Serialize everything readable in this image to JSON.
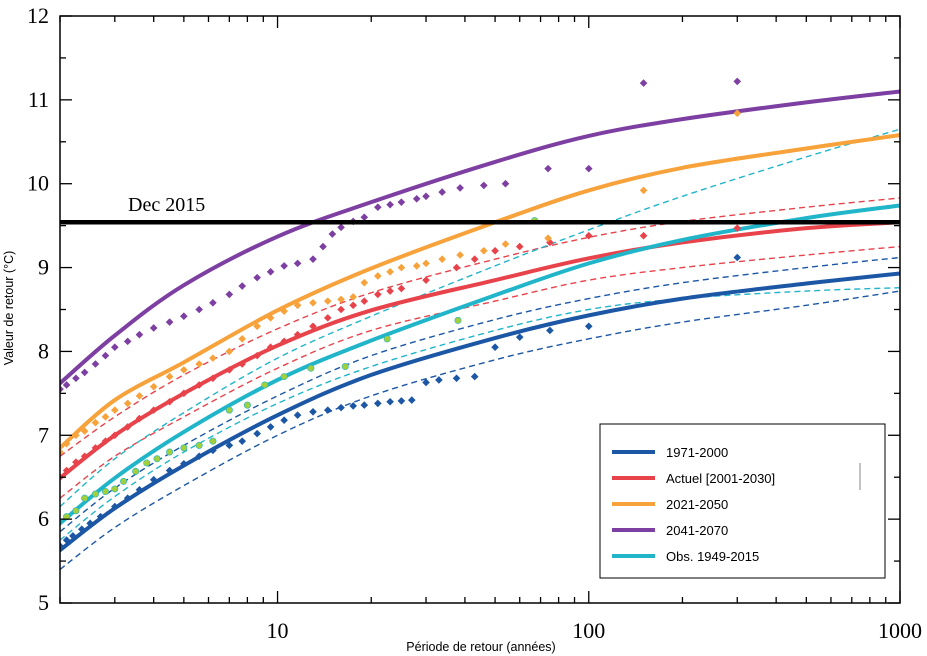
{
  "chart_data": {
    "type": "line",
    "title": "",
    "xlabel": "Période de retour (années)",
    "ylabel": "Valeur de retour (°C)",
    "xscale": "log",
    "xlim": [
      2,
      1000
    ],
    "ylim": [
      5,
      12
    ],
    "xticks": [
      "10",
      "100",
      "1000"
    ],
    "yticks": [
      "5",
      "6",
      "7",
      "8",
      "9",
      "10",
      "11",
      "12"
    ],
    "grid": false,
    "legend_position": "bottom-right",
    "reference_line": {
      "label": "Dec 2015",
      "y": 9.54,
      "color": "#000000"
    },
    "x": [
      2,
      3,
      5,
      10,
      20,
      50,
      100,
      200,
      500,
      1000
    ],
    "series": [
      {
        "name": "1971-2000",
        "color": "#1c57a5",
        "marker": "diamond",
        "fit": [
          5.63,
          6.13,
          6.64,
          7.24,
          7.72,
          8.16,
          8.43,
          8.63,
          8.81,
          8.93
        ],
        "upper": [
          5.85,
          6.37,
          6.88,
          7.47,
          7.95,
          8.38,
          8.63,
          8.82,
          9.0,
          9.12
        ],
        "lower": [
          5.4,
          5.9,
          6.4,
          7.0,
          7.47,
          7.9,
          8.15,
          8.35,
          8.55,
          8.72
        ],
        "points": [
          [
            2.0,
            5.68
          ],
          [
            2.1,
            5.75
          ],
          [
            2.2,
            5.8
          ],
          [
            2.35,
            5.88
          ],
          [
            2.5,
            5.95
          ],
          [
            2.7,
            6.03
          ],
          [
            3.0,
            6.15
          ],
          [
            3.3,
            6.25
          ],
          [
            3.6,
            6.35
          ],
          [
            4.0,
            6.47
          ],
          [
            4.5,
            6.58
          ],
          [
            5.0,
            6.66
          ],
          [
            5.6,
            6.75
          ],
          [
            6.2,
            6.82
          ],
          [
            7.0,
            6.88
          ],
          [
            7.7,
            6.93
          ],
          [
            8.6,
            7.02
          ],
          [
            9.5,
            7.1
          ],
          [
            10.5,
            7.18
          ],
          [
            11.6,
            7.24
          ],
          [
            13,
            7.28
          ],
          [
            14.5,
            7.3
          ],
          [
            16,
            7.33
          ],
          [
            17.5,
            7.35
          ],
          [
            19,
            7.36
          ],
          [
            21,
            7.38
          ],
          [
            23,
            7.4
          ],
          [
            25,
            7.41
          ],
          [
            27,
            7.42
          ],
          [
            30,
            7.63
          ],
          [
            33,
            7.66
          ],
          [
            37.6,
            7.68
          ],
          [
            43,
            7.7
          ],
          [
            50,
            8.05
          ],
          [
            60,
            8.17
          ],
          [
            75,
            8.25
          ],
          [
            100,
            8.3
          ],
          [
            300,
            9.12
          ]
        ]
      },
      {
        "name": "Actuel [2001-2030]",
        "color": "#e8434b",
        "marker": "diamond",
        "fit": [
          6.49,
          7.0,
          7.5,
          8.07,
          8.49,
          8.85,
          9.11,
          9.3,
          9.47,
          9.54
        ],
        "upper": [
          6.75,
          7.22,
          7.72,
          8.27,
          8.7,
          9.1,
          9.36,
          9.55,
          9.72,
          9.83
        ],
        "lower": [
          6.25,
          6.75,
          7.22,
          7.8,
          8.25,
          8.6,
          8.85,
          9.0,
          9.15,
          9.25
        ],
        "points": [
          [
            2.0,
            6.5
          ],
          [
            2.1,
            6.58
          ],
          [
            2.25,
            6.68
          ],
          [
            2.4,
            6.75
          ],
          [
            2.6,
            6.85
          ],
          [
            2.8,
            6.93
          ],
          [
            3.0,
            7.0
          ],
          [
            3.3,
            7.1
          ],
          [
            3.6,
            7.2
          ],
          [
            4.0,
            7.3
          ],
          [
            4.5,
            7.4
          ],
          [
            5.0,
            7.5
          ],
          [
            5.6,
            7.6
          ],
          [
            6.2,
            7.68
          ],
          [
            7.0,
            7.78
          ],
          [
            7.7,
            7.85
          ],
          [
            8.6,
            7.95
          ],
          [
            9.5,
            8.05
          ],
          [
            10.5,
            8.12
          ],
          [
            11.6,
            8.2
          ],
          [
            13,
            8.3
          ],
          [
            14.5,
            8.4
          ],
          [
            16,
            8.5
          ],
          [
            17.5,
            8.55
          ],
          [
            19,
            8.6
          ],
          [
            21,
            8.68
          ],
          [
            23,
            8.72
          ],
          [
            25,
            8.75
          ],
          [
            30,
            8.85
          ],
          [
            37.6,
            9.0
          ],
          [
            43,
            9.1
          ],
          [
            50,
            9.2
          ],
          [
            60,
            9.25
          ],
          [
            75,
            9.3
          ],
          [
            100,
            9.38
          ],
          [
            150,
            9.38
          ],
          [
            300,
            9.47
          ]
        ]
      },
      {
        "name": "2021-2050",
        "color": "#f7a23a",
        "marker": "diamond",
        "fit": [
          6.85,
          7.42,
          7.87,
          8.49,
          8.99,
          9.54,
          9.92,
          10.19,
          10.42,
          10.58
        ],
        "points": [
          [
            2.0,
            6.8
          ],
          [
            2.1,
            6.9
          ],
          [
            2.25,
            7.0
          ],
          [
            2.4,
            7.05
          ],
          [
            2.6,
            7.15
          ],
          [
            2.8,
            7.22
          ],
          [
            3.0,
            7.3
          ],
          [
            3.3,
            7.38
          ],
          [
            3.6,
            7.47
          ],
          [
            4.0,
            7.58
          ],
          [
            4.5,
            7.7
          ],
          [
            5.0,
            7.78
          ],
          [
            5.6,
            7.85
          ],
          [
            6.2,
            7.92
          ],
          [
            7.0,
            8.0
          ],
          [
            7.7,
            8.15
          ],
          [
            8.6,
            8.3
          ],
          [
            9.5,
            8.4
          ],
          [
            10.5,
            8.48
          ],
          [
            11.6,
            8.55
          ],
          [
            13,
            8.58
          ],
          [
            14.5,
            8.6
          ],
          [
            16,
            8.62
          ],
          [
            17.5,
            8.65
          ],
          [
            19,
            8.82
          ],
          [
            21,
            8.9
          ],
          [
            23,
            8.95
          ],
          [
            25,
            9.0
          ],
          [
            28,
            9.02
          ],
          [
            30,
            9.05
          ],
          [
            33.8,
            9.1
          ],
          [
            38.6,
            9.15
          ],
          [
            46,
            9.2
          ],
          [
            54,
            9.28
          ],
          [
            74,
            9.35
          ],
          [
            150,
            9.92
          ],
          [
            300,
            10.84
          ]
        ]
      },
      {
        "name": "2041-2070",
        "color": "#7d3fa1",
        "marker": "diamond",
        "fit": [
          7.62,
          8.19,
          8.79,
          9.37,
          9.78,
          10.26,
          10.57,
          10.77,
          10.97,
          11.1
        ],
        "points": [
          [
            2.0,
            7.55
          ],
          [
            2.1,
            7.6
          ],
          [
            2.25,
            7.68
          ],
          [
            2.4,
            7.75
          ],
          [
            2.6,
            7.85
          ],
          [
            2.8,
            7.95
          ],
          [
            3.0,
            8.05
          ],
          [
            3.3,
            8.12
          ],
          [
            3.6,
            8.2
          ],
          [
            4.0,
            8.28
          ],
          [
            4.5,
            8.35
          ],
          [
            5.0,
            8.42
          ],
          [
            5.6,
            8.5
          ],
          [
            6.2,
            8.58
          ],
          [
            7.0,
            8.68
          ],
          [
            7.7,
            8.78
          ],
          [
            8.6,
            8.88
          ],
          [
            9.5,
            8.95
          ],
          [
            10.5,
            9.02
          ],
          [
            11.6,
            9.05
          ],
          [
            13,
            9.1
          ],
          [
            14,
            9.25
          ],
          [
            15,
            9.4
          ],
          [
            16,
            9.48
          ],
          [
            17.5,
            9.55
          ],
          [
            19,
            9.6
          ],
          [
            21,
            9.72
          ],
          [
            23,
            9.75
          ],
          [
            25,
            9.78
          ],
          [
            28,
            9.82
          ],
          [
            30,
            9.85
          ],
          [
            33.8,
            9.9
          ],
          [
            38.6,
            9.95
          ],
          [
            46,
            9.98
          ],
          [
            54,
            10.0
          ],
          [
            74,
            10.18
          ],
          [
            100,
            10.18
          ],
          [
            150,
            11.2
          ],
          [
            300,
            11.22
          ]
        ]
      },
      {
        "name": "Obs. 1949-2015",
        "color": "#21b5ca",
        "marker": "circle",
        "point_color": "#a2cf3a",
        "fit": [
          5.95,
          6.49,
          7.04,
          7.66,
          8.13,
          8.67,
          9.05,
          9.33,
          9.59,
          9.74
        ],
        "upper": [
          6.15,
          6.72,
          7.27,
          7.92,
          8.42,
          9.02,
          9.45,
          9.85,
          10.32,
          10.65
        ],
        "lower": [
          5.75,
          6.27,
          6.8,
          7.38,
          7.82,
          8.25,
          8.5,
          8.63,
          8.72,
          8.76
        ],
        "points": [
          [
            2.1,
            6.03
          ],
          [
            2.25,
            6.1
          ],
          [
            2.4,
            6.25
          ],
          [
            2.6,
            6.3
          ],
          [
            2.8,
            6.33
          ],
          [
            3.0,
            6.36
          ],
          [
            3.2,
            6.45
          ],
          [
            3.5,
            6.57
          ],
          [
            3.8,
            6.67
          ],
          [
            4.1,
            6.72
          ],
          [
            4.5,
            6.8
          ],
          [
            5.0,
            6.85
          ],
          [
            5.6,
            6.88
          ],
          [
            6.2,
            6.93
          ],
          [
            7.0,
            7.3
          ],
          [
            8.0,
            7.36
          ],
          [
            9.1,
            7.6
          ],
          [
            10.5,
            7.7
          ],
          [
            12.8,
            7.8
          ],
          [
            16.5,
            7.82
          ],
          [
            22.5,
            8.15
          ],
          [
            38,
            8.37
          ],
          [
            67,
            9.56
          ]
        ]
      }
    ]
  }
}
